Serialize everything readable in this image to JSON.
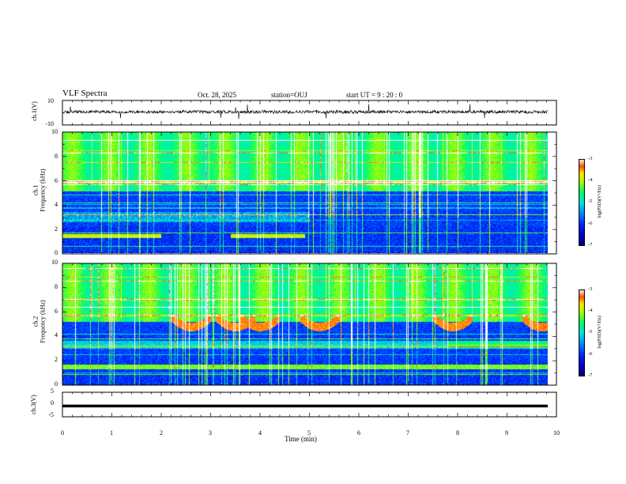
{
  "header": {
    "title": "VLF Spectra",
    "date": "Oct. 28, 2025",
    "station": "station=OUJ",
    "start_ut": "start  UT =   9 : 20 : 0"
  },
  "chart_data": [
    {
      "type": "line",
      "panel": "ch1-waveform",
      "ylabel": "ch.1(V)",
      "ylim": [
        -10,
        10
      ],
      "yticks": [
        "10",
        "-10"
      ],
      "trace_color": "#000000",
      "baseline": 0
    },
    {
      "type": "heatmap",
      "panel": "ch1-spectrogram",
      "ylabel": "ch.1\nFrequency (kHz)",
      "ylabel_line1": "ch.1",
      "ylabel_line2": "Frequency (kHz)",
      "ylim": [
        0,
        10
      ],
      "yticks": [
        "0",
        "2",
        "4",
        "6",
        "8",
        "10"
      ],
      "colorbar": {
        "label": "log(PSD)(V²/Hz)",
        "ticks": [
          "-3",
          "-4",
          "-5",
          "-6",
          "-7"
        ],
        "range": [
          -7,
          -3
        ]
      }
    },
    {
      "type": "heatmap",
      "panel": "ch2-spectrogram",
      "ylabel_line1": "ch.2",
      "ylabel_line2": "Frequency (kHz)",
      "ylim": [
        0,
        10
      ],
      "yticks": [
        "0",
        "2",
        "4",
        "6",
        "8",
        "10"
      ],
      "colorbar": {
        "label": "log(PSD)(V²/Hz)",
        "ticks": [
          "-3",
          "-4",
          "-5",
          "-6",
          "-7"
        ],
        "range": [
          -7,
          -3
        ]
      }
    },
    {
      "type": "line",
      "panel": "ch3-waveform",
      "ylabel": "ch.3(V)",
      "ylim": [
        -5,
        5
      ],
      "yticks": [
        "5",
        "0",
        "-5"
      ],
      "trace_color": "#000000",
      "baseline": -0.6
    }
  ],
  "xaxis": {
    "label": "Time  (min)",
    "range": [
      0,
      10
    ],
    "ticks": [
      "0",
      "1",
      "2",
      "3",
      "4",
      "5",
      "6",
      "7",
      "8",
      "9",
      "10"
    ]
  },
  "colors": {
    "dark": "#000080",
    "blue": "#0000ff",
    "cyan": "#00ffff",
    "green": "#00ff60",
    "yellow": "#ffff00",
    "red": "#ff0000",
    "white": "#ffffff"
  }
}
